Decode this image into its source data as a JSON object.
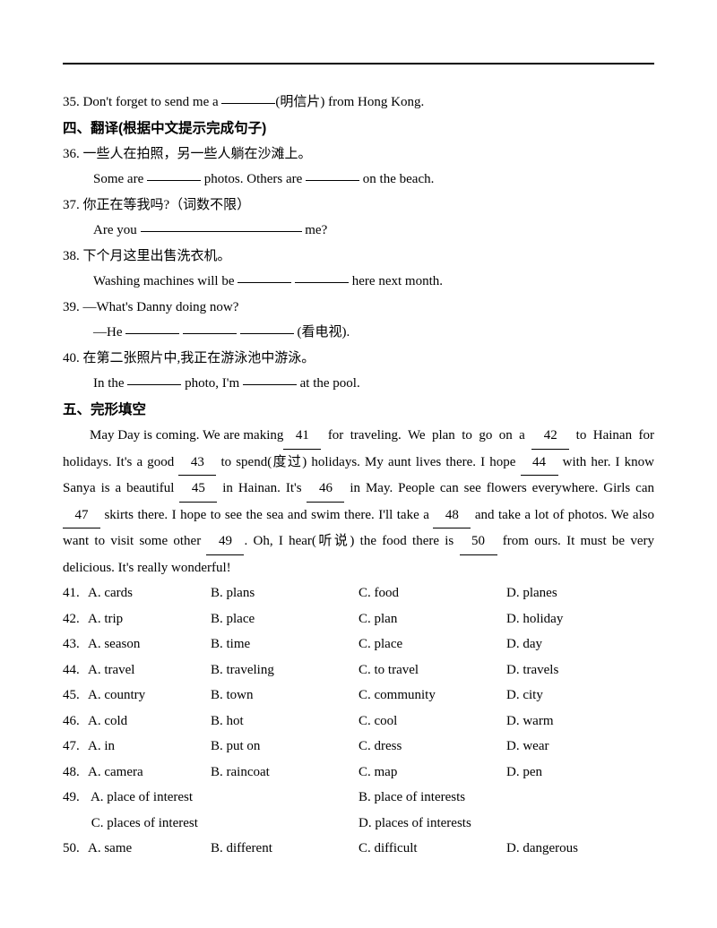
{
  "q35": {
    "text_a": "35. Don't forget to send me a ",
    "text_b": "(明信片) from Hong Kong."
  },
  "section4_title": "四、翻译(根据中文提示完成句子)",
  "q36": {
    "cn": "36. 一些人在拍照，另一些人躺在沙滩上。",
    "en_a": "Some are ",
    "en_b": " photos. Others are ",
    "en_c": " on the beach."
  },
  "q37": {
    "cn": "37. 你正在等我吗?（词数不限）",
    "en_a": "Are you ",
    "en_b": " me?"
  },
  "q38": {
    "cn": "38. 下个月这里出售洗衣机。",
    "en_a": "Washing machines will be ",
    "en_b": " here next month."
  },
  "q39": {
    "line1": "39. —What's Danny doing now?",
    "en_a": "—He ",
    "en_b": " (看电视)."
  },
  "q40": {
    "cn": "40. 在第二张照片中,我正在游泳池中游泳。",
    "en_a": "In the ",
    "en_b": " photo, I'm ",
    "en_c": " at the pool."
  },
  "section5_title": "五、完形填空",
  "passage": {
    "p1a": "May Day is coming. We are making ",
    "p1b": " for traveling. We plan to go on a ",
    "p2a": " to Hainan for holidays. It's a good ",
    "p2b": " to spend(度过) holidays. My aunt lives there. I hope ",
    "p2c": " with her.  I know Sanya is a beautiful ",
    "p2d": " in Hainan. It's ",
    "p2e": " in May. People can see flowers everywhere. Girls can ",
    "p2f": " skirts there. I hope to see the sea and swim there. I'll take a ",
    "p2g": " and take a lot of photos. We also want to visit some other ",
    "p2h": ". Oh, I hear(听说) the food there is ",
    "p2i": " from ours. It must be very delicious. It's really wonderful!"
  },
  "nums": {
    "n41": "41",
    "n42": "42",
    "n43": "43",
    "n44": "44",
    "n45": "45",
    "n46": "46",
    "n47": "47",
    "n48": "48",
    "n49": "49",
    "n50": "50"
  },
  "opts": {
    "q41": {
      "n": "41.",
      "a": "A. cards",
      "b": "B. plans",
      "c": "C. food",
      "d": "D. planes"
    },
    "q42": {
      "n": "42.",
      "a": "A. trip",
      "b": "B. place",
      "c": "C. plan",
      "d": "D. holiday"
    },
    "q43": {
      "n": "43.",
      "a": "A. season",
      "b": "B. time",
      "c": "C. place",
      "d": "D. day"
    },
    "q44": {
      "n": "44.",
      "a": "A. travel",
      "b": "B. traveling",
      "c": "C. to travel",
      "d": "D. travels"
    },
    "q45": {
      "n": "45.",
      "a": "A. country",
      "b": "B. town",
      "c": "C. community",
      "d": "D. city"
    },
    "q46": {
      "n": "46.",
      "a": "A. cold",
      "b": "B. hot",
      "c": "C. cool",
      "d": "D. warm"
    },
    "q47": {
      "n": "47.",
      "a": "A. in",
      "b": "B. put on",
      "c": "C. dress",
      "d": "D. wear"
    },
    "q48": {
      "n": "48.",
      "a": "A. camera",
      "b": "B. raincoat",
      "c": "C. map",
      "d": "D. pen"
    },
    "q49": {
      "n": "49.",
      "a": "A. place of interest",
      "b": "B. place of interests",
      "c": "C. places of interest",
      "d": "D. places of interests"
    },
    "q50": {
      "n": "50.",
      "a": "A. same",
      "b": "B. different",
      "c": "C. difficult",
      "d": "D. dangerous"
    }
  }
}
